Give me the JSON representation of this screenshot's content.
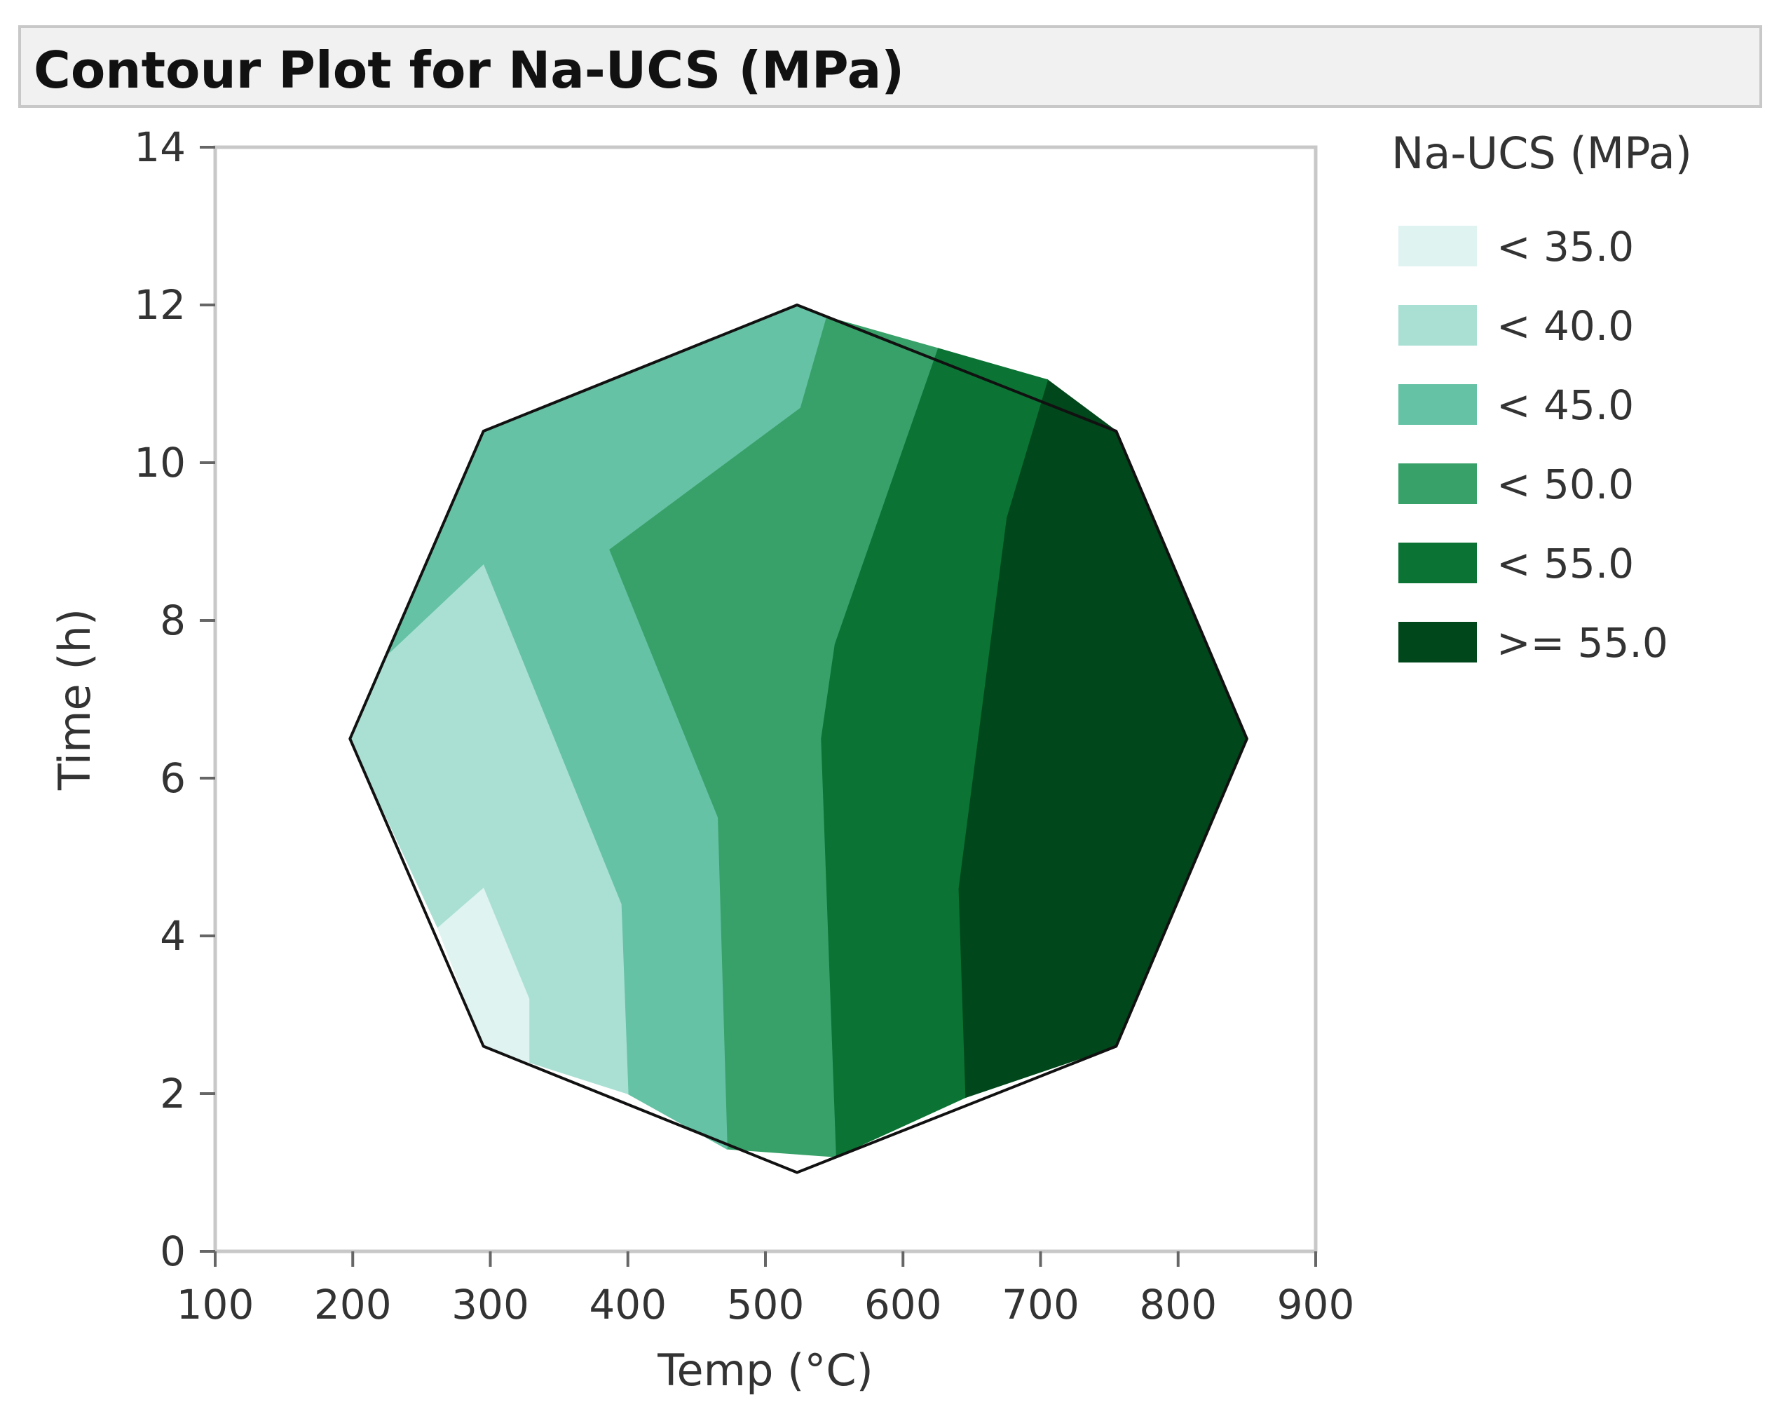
{
  "chart_data": {
    "type": "contour",
    "title": "Contour Plot for Na-UCS (MPa)",
    "xlabel": "Temp (°C)",
    "ylabel": "Time (h)",
    "xlim": [
      100,
      900
    ],
    "ylim": [
      0,
      14
    ],
    "xticks": [
      100,
      200,
      300,
      400,
      500,
      600,
      700,
      800,
      900
    ],
    "yticks": [
      0,
      2,
      4,
      6,
      8,
      10,
      12,
      14
    ],
    "grid": false,
    "legend": {
      "title": "Na-UCS (MPa)",
      "placement": "right",
      "entries": [
        {
          "label": "< 35.0",
          "color": "#dff3f1"
        },
        {
          "label": "< 40.0",
          "color": "#aae0d3"
        },
        {
          "label": "< 45.0",
          "color": "#66c2a5"
        },
        {
          "label": "< 50.0",
          "color": "#38a169"
        },
        {
          "label": ">= 55.0",
          "color": "#00471b",
          "skip": true
        }
      ]
    },
    "levels": [
      {
        "label": "< 35.0",
        "color": "#dff3f1"
      },
      {
        "label": "< 40.0",
        "color": "#aae0d3"
      },
      {
        "label": "< 45.0",
        "color": "#66c2a5"
      },
      {
        "label": "< 50.0",
        "color": "#38a169"
      },
      {
        "label": "< 55.0",
        "color": "#0b7434"
      },
      {
        "label": ">= 55.0",
        "color": "#00471b"
      }
    ],
    "domain": [
      [
        523,
        12.0
      ],
      [
        755,
        10.4
      ],
      [
        850,
        6.5
      ],
      [
        755,
        2.6
      ],
      [
        523,
        1.0
      ],
      [
        295,
        2.6
      ],
      [
        198,
        6.5
      ],
      [
        295,
        10.4
      ]
    ],
    "regions": [
      {
        "level": 5,
        "points": [
          [
            705,
            11.05
          ],
          [
            755,
            10.4
          ],
          [
            850,
            6.5
          ],
          [
            755,
            2.6
          ],
          [
            645,
            1.95
          ],
          [
            640,
            4.6
          ],
          [
            675,
            9.3
          ]
        ]
      },
      {
        "level": 4,
        "points": [
          [
            625,
            11.45
          ],
          [
            705,
            11.05
          ],
          [
            675,
            9.3
          ],
          [
            640,
            4.6
          ],
          [
            645,
            1.95
          ],
          [
            551,
            1.2
          ],
          [
            540,
            6.5
          ],
          [
            550,
            7.7
          ]
        ]
      },
      {
        "level": 3,
        "points": [
          [
            544,
            11.85
          ],
          [
            625,
            11.45
          ],
          [
            550,
            7.7
          ],
          [
            540,
            6.5
          ],
          [
            551,
            1.2
          ],
          [
            472,
            1.3
          ],
          [
            465,
            5.5
          ],
          [
            386,
            8.9
          ],
          [
            525,
            10.7
          ]
        ]
      },
      {
        "level": 2,
        "points": [
          [
            523,
            12.0
          ],
          [
            544,
            11.85
          ],
          [
            525,
            10.7
          ],
          [
            386,
            8.9
          ],
          [
            465,
            5.5
          ],
          [
            472,
            1.3
          ],
          [
            400,
            2.0
          ],
          [
            395,
            4.4
          ],
          [
            295,
            8.7
          ],
          [
            222,
            7.5
          ],
          [
            198,
            6.5
          ],
          [
            295,
            10.4
          ]
        ]
      },
      {
        "level": 1,
        "points": [
          [
            222,
            7.5
          ],
          [
            295,
            8.7
          ],
          [
            395,
            4.4
          ],
          [
            400,
            2.0
          ],
          [
            328,
            2.4
          ],
          [
            328,
            3.2
          ],
          [
            295,
            4.6
          ],
          [
            262,
            4.1
          ],
          [
            198,
            6.5
          ]
        ]
      },
      {
        "level": 0,
        "points": [
          [
            262,
            4.1
          ],
          [
            295,
            4.6
          ],
          [
            328,
            3.2
          ],
          [
            328,
            2.4
          ],
          [
            295,
            2.6
          ]
        ]
      }
    ]
  }
}
